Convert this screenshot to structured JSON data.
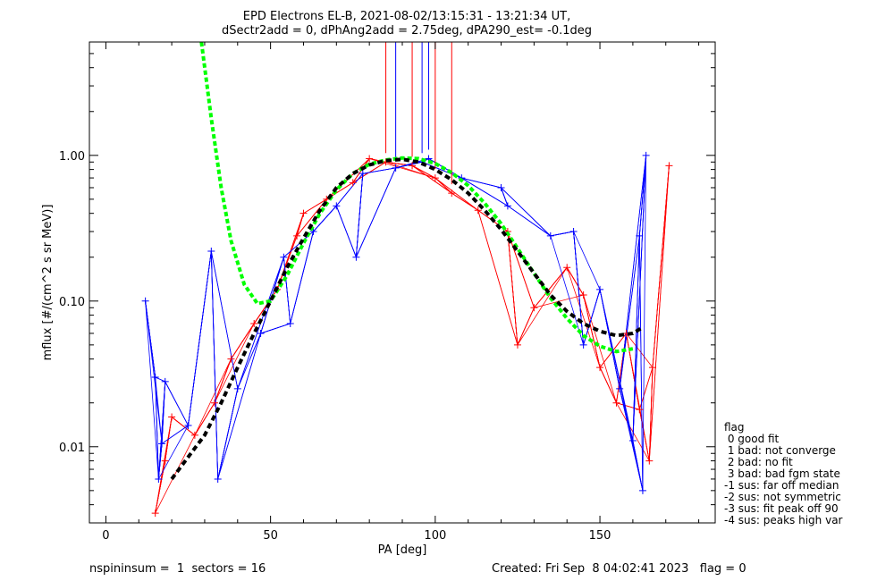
{
  "chart_data": {
    "type": "scatter",
    "title": "EPD Electrons EL-B, 2021-08-02/13:15:31 - 13:21:34 UT,",
    "subtitle": "dSectr2add = 0, dPhAng2add = 2.75deg, dPA290_est=  -0.1deg",
    "xlabel": "PA [deg]",
    "ylabel": "mflux [#/(cm^2 s sr MeV)]",
    "xlim": [
      -5,
      185
    ],
    "ylim": [
      0.003,
      6
    ],
    "y_scale": "log",
    "x_ticks": [
      0,
      50,
      100,
      150
    ],
    "x_tick_labels": [
      "0",
      "50",
      "100",
      "150"
    ],
    "y_ticks": [
      0.01,
      0.1,
      1.0
    ],
    "y_tick_labels": [
      "0.01",
      "0.10",
      "1.00"
    ],
    "grid": false,
    "series": [
      {
        "color": "#ff0000",
        "points": [
          {
            "x": 15,
            "y": 0.0035
          },
          {
            "x": 18,
            "y": 0.008
          },
          {
            "x": 20,
            "y": 0.016
          },
          {
            "x": 27,
            "y": 0.012
          },
          {
            "x": 33,
            "y": 0.02
          },
          {
            "x": 38,
            "y": 0.04
          },
          {
            "x": 45,
            "y": 0.07
          },
          {
            "x": 52,
            "y": 0.12
          },
          {
            "x": 58,
            "y": 0.28
          },
          {
            "x": 60,
            "y": 0.4
          },
          {
            "x": 67,
            "y": 0.5
          },
          {
            "x": 75,
            "y": 0.65
          },
          {
            "x": 80,
            "y": 0.95
          },
          {
            "x": 85,
            "y": 0.9
          },
          {
            "x": 93,
            "y": 0.85
          },
          {
            "x": 100,
            "y": 0.7
          },
          {
            "x": 105,
            "y": 0.55
          },
          {
            "x": 113,
            "y": 0.42
          },
          {
            "x": 122,
            "y": 0.3
          },
          {
            "x": 125,
            "y": 0.05
          },
          {
            "x": 130,
            "y": 0.09
          },
          {
            "x": 140,
            "y": 0.17
          },
          {
            "x": 145,
            "y": 0.11
          },
          {
            "x": 150,
            "y": 0.035
          },
          {
            "x": 155,
            "y": 0.02
          },
          {
            "x": 158,
            "y": 0.06
          },
          {
            "x": 162,
            "y": 0.018
          },
          {
            "x": 165,
            "y": 0.008
          },
          {
            "x": 166,
            "y": 0.035
          },
          {
            "x": 171,
            "y": 0.85
          }
        ]
      },
      {
        "color": "#0000ff",
        "points": [
          {
            "x": 12,
            "y": 0.1
          },
          {
            "x": 15,
            "y": 0.03
          },
          {
            "x": 16,
            "y": 0.006
          },
          {
            "x": 17,
            "y": 0.0105
          },
          {
            "x": 18,
            "y": 0.028
          },
          {
            "x": 25,
            "y": 0.014
          },
          {
            "x": 32,
            "y": 0.22
          },
          {
            "x": 34,
            "y": 0.006
          },
          {
            "x": 40,
            "y": 0.025
          },
          {
            "x": 47,
            "y": 0.06
          },
          {
            "x": 54,
            "y": 0.2
          },
          {
            "x": 56,
            "y": 0.07
          },
          {
            "x": 63,
            "y": 0.3
          },
          {
            "x": 70,
            "y": 0.45
          },
          {
            "x": 76,
            "y": 0.2
          },
          {
            "x": 78,
            "y": 0.75
          },
          {
            "x": 88,
            "y": 0.82
          },
          {
            "x": 96,
            "y": 0.9
          },
          {
            "x": 98,
            "y": 0.95
          },
          {
            "x": 108,
            "y": 0.7
          },
          {
            "x": 120,
            "y": 0.6
          },
          {
            "x": 122,
            "y": 0.45
          },
          {
            "x": 135,
            "y": 0.28
          },
          {
            "x": 142,
            "y": 0.3
          },
          {
            "x": 145,
            "y": 0.05
          },
          {
            "x": 150,
            "y": 0.12
          },
          {
            "x": 156,
            "y": 0.025
          },
          {
            "x": 160,
            "y": 0.011
          },
          {
            "x": 162,
            "y": 0.28
          },
          {
            "x": 163,
            "y": 0.005
          },
          {
            "x": 164,
            "y": 1.0
          }
        ]
      },
      {
        "color": "#00ff00",
        "style": "dotted",
        "points": [
          {
            "x": 29,
            "y": 6.0
          },
          {
            "x": 32,
            "y": 1.8
          },
          {
            "x": 35,
            "y": 0.6
          },
          {
            "x": 38,
            "y": 0.26
          },
          {
            "x": 42,
            "y": 0.13
          },
          {
            "x": 46,
            "y": 0.096
          },
          {
            "x": 50,
            "y": 0.1
          },
          {
            "x": 55,
            "y": 0.15
          },
          {
            "x": 60,
            "y": 0.25
          },
          {
            "x": 65,
            "y": 0.4
          },
          {
            "x": 70,
            "y": 0.58
          },
          {
            "x": 75,
            "y": 0.75
          },
          {
            "x": 80,
            "y": 0.87
          },
          {
            "x": 85,
            "y": 0.93
          },
          {
            "x": 90,
            "y": 0.96
          },
          {
            "x": 95,
            "y": 0.95
          },
          {
            "x": 100,
            "y": 0.88
          },
          {
            "x": 105,
            "y": 0.76
          },
          {
            "x": 110,
            "y": 0.62
          },
          {
            "x": 115,
            "y": 0.47
          },
          {
            "x": 120,
            "y": 0.34
          },
          {
            "x": 125,
            "y": 0.23
          },
          {
            "x": 130,
            "y": 0.155
          },
          {
            "x": 135,
            "y": 0.105
          },
          {
            "x": 140,
            "y": 0.076
          },
          {
            "x": 145,
            "y": 0.058
          },
          {
            "x": 150,
            "y": 0.049
          },
          {
            "x": 155,
            "y": 0.045
          },
          {
            "x": 160,
            "y": 0.047
          }
        ]
      },
      {
        "color": "#000000",
        "style": "dashed",
        "points": [
          {
            "x": 20,
            "y": 0.006
          },
          {
            "x": 25,
            "y": 0.0085
          },
          {
            "x": 30,
            "y": 0.012
          },
          {
            "x": 35,
            "y": 0.02
          },
          {
            "x": 40,
            "y": 0.035
          },
          {
            "x": 45,
            "y": 0.06
          },
          {
            "x": 50,
            "y": 0.1
          },
          {
            "x": 55,
            "y": 0.17
          },
          {
            "x": 60,
            "y": 0.27
          },
          {
            "x": 65,
            "y": 0.42
          },
          {
            "x": 70,
            "y": 0.6
          },
          {
            "x": 75,
            "y": 0.75
          },
          {
            "x": 80,
            "y": 0.86
          },
          {
            "x": 85,
            "y": 0.92
          },
          {
            "x": 90,
            "y": 0.94
          },
          {
            "x": 95,
            "y": 0.9
          },
          {
            "x": 100,
            "y": 0.8
          },
          {
            "x": 105,
            "y": 0.68
          },
          {
            "x": 110,
            "y": 0.55
          },
          {
            "x": 115,
            "y": 0.42
          },
          {
            "x": 120,
            "y": 0.31
          },
          {
            "x": 125,
            "y": 0.22
          },
          {
            "x": 130,
            "y": 0.155
          },
          {
            "x": 135,
            "y": 0.11
          },
          {
            "x": 140,
            "y": 0.085
          },
          {
            "x": 145,
            "y": 0.07
          },
          {
            "x": 150,
            "y": 0.062
          },
          {
            "x": 155,
            "y": 0.058
          },
          {
            "x": 160,
            "y": 0.06
          },
          {
            "x": 163,
            "y": 0.066
          }
        ]
      }
    ],
    "legend": {
      "title": "flag",
      "entries": [
        " 0 good fit",
        " 1 bad: not converge",
        " 2 bad: no fit",
        " 3 bad: bad fgm state",
        "-1 sus: far off median",
        "-2 sus: not symmetric",
        "-3 sus: fit peak off 90",
        "-4 sus: peaks high var"
      ],
      "placement": "right"
    }
  },
  "footer": {
    "left": "nspininsum =  1  sectors = 16",
    "right": "Created: Fri Sep  8 04:02:41 2023   flag = 0"
  }
}
